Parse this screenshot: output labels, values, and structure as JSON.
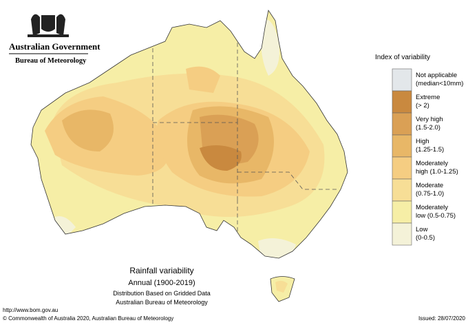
{
  "header": {
    "government": "Australian Government",
    "agency": "Bureau of Meteorology"
  },
  "legend": {
    "title": "Index of variability",
    "items": [
      {
        "lines": [
          "Not applicable",
          "(median<10mm)"
        ],
        "color": "#e3e7ea"
      },
      {
        "lines": [
          "Extreme",
          "(> 2)"
        ],
        "color": "#c9893f"
      },
      {
        "lines": [
          "Very high",
          "(1.5-2.0)"
        ],
        "color": "#daa055"
      },
      {
        "lines": [
          "High",
          "(1.25-1.5)"
        ],
        "color": "#e8b767"
      },
      {
        "lines": [
          "Moderately",
          "high (1.0-1.25)"
        ],
        "color": "#f5cd82"
      },
      {
        "lines": [
          "Moderate",
          "(0.75-1.0)"
        ],
        "color": "#f7de96"
      },
      {
        "lines": [
          "Moderately",
          "low (0.5-0.75)"
        ],
        "color": "#f6eea6"
      },
      {
        "lines": [
          "Low",
          "(0-0.5)"
        ],
        "color": "#f4f2d8"
      }
    ]
  },
  "caption": {
    "title": "Rainfall variability",
    "period": "Annual (1900-2019)",
    "line1": "Distribution Based on Gridded Data",
    "line2": "Australian Bureau of Meteorology"
  },
  "footer": {
    "url": "http://www.bom.gov.au",
    "copyright": "© Commonwealth of Australia 2020, Australian Bureau of Meteorology",
    "issued": "Issued: 28/07/2020"
  }
}
